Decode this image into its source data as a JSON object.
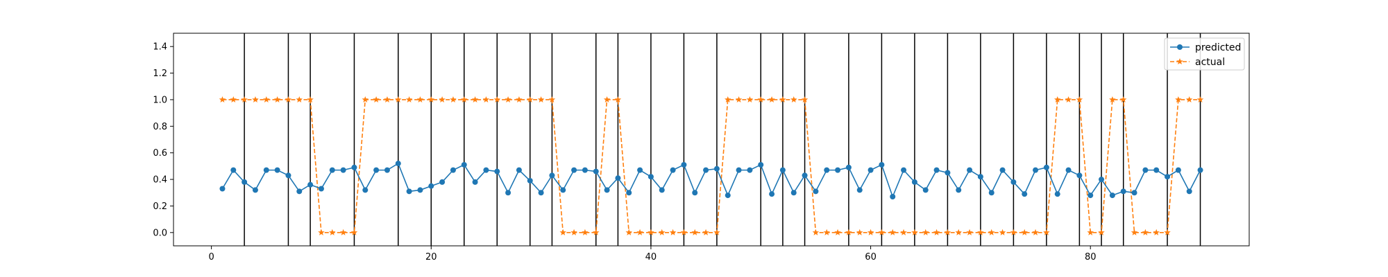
{
  "chart_data": {
    "type": "line",
    "title": "",
    "xlabel": "",
    "ylabel": "",
    "xlim": [
      -3.45,
      94.45
    ],
    "ylim": [
      -0.1,
      1.5
    ],
    "x_ticks": [
      0,
      20,
      40,
      60,
      80
    ],
    "y_ticks": [
      0.0,
      0.2,
      0.4,
      0.6,
      0.8,
      1.0,
      1.2,
      1.4
    ],
    "x_tick_labels": [
      "0",
      "20",
      "40",
      "60",
      "80"
    ],
    "y_tick_labels": [
      "0.0",
      "0.2",
      "0.4",
      "0.6",
      "0.8",
      "1.0",
      "1.2",
      "1.4"
    ],
    "grid": false,
    "legend_position": "top-right",
    "vertical_lines_x": [
      3,
      7,
      9,
      13,
      17,
      20,
      23,
      26,
      29,
      31,
      35,
      37,
      40,
      43,
      46,
      50,
      52,
      54,
      58,
      61,
      64,
      67,
      70,
      73,
      76,
      79,
      81,
      83,
      87,
      90
    ],
    "vertical_line_color": "#000000",
    "x": [
      1,
      2,
      3,
      4,
      5,
      6,
      7,
      8,
      9,
      10,
      11,
      12,
      13,
      14,
      15,
      16,
      17,
      18,
      19,
      20,
      21,
      22,
      23,
      24,
      25,
      26,
      27,
      28,
      29,
      30,
      31,
      32,
      33,
      34,
      35,
      36,
      37,
      38,
      39,
      40,
      41,
      42,
      43,
      44,
      45,
      46,
      47,
      48,
      49,
      50,
      51,
      52,
      53,
      54,
      55,
      56,
      57,
      58,
      59,
      60,
      61,
      62,
      63,
      64,
      65,
      66,
      67,
      68,
      69,
      70,
      71,
      72,
      73,
      74,
      75,
      76,
      77,
      78,
      79,
      80,
      81,
      82,
      83,
      84,
      85,
      86,
      87,
      88,
      89,
      90
    ],
    "series": [
      {
        "name": "predicted",
        "color": "#1f77b4",
        "marker": "circle",
        "line_style": "solid",
        "values": [
          0.33,
          0.47,
          0.38,
          0.32,
          0.47,
          0.47,
          0.43,
          0.31,
          0.36,
          0.33,
          0.47,
          0.47,
          0.49,
          0.32,
          0.47,
          0.47,
          0.52,
          0.31,
          0.32,
          0.35,
          0.38,
          0.47,
          0.51,
          0.38,
          0.47,
          0.46,
          0.3,
          0.47,
          0.39,
          0.3,
          0.43,
          0.32,
          0.47,
          0.47,
          0.46,
          0.32,
          0.41,
          0.3,
          0.47,
          0.42,
          0.32,
          0.47,
          0.51,
          0.3,
          0.47,
          0.48,
          0.28,
          0.47,
          0.47,
          0.51,
          0.29,
          0.47,
          0.3,
          0.43,
          0.31,
          0.47,
          0.47,
          0.49,
          0.32,
          0.47,
          0.51,
          0.27,
          0.47,
          0.38,
          0.32,
          0.47,
          0.45,
          0.32,
          0.47,
          0.42,
          0.3,
          0.47,
          0.38,
          0.29,
          0.47,
          0.49,
          0.29,
          0.47,
          0.43,
          0.28,
          0.4,
          0.28,
          0.31,
          0.3,
          0.47,
          0.47,
          0.42,
          0.47,
          0.31,
          0.47
        ]
      },
      {
        "name": "actual",
        "color": "#ff7f0e",
        "marker": "star",
        "line_style": "dashed",
        "values": [
          1,
          1,
          1,
          1,
          1,
          1,
          1,
          1,
          1,
          0,
          0,
          0,
          0,
          1,
          1,
          1,
          1,
          1,
          1,
          1,
          1,
          1,
          1,
          1,
          1,
          1,
          1,
          1,
          1,
          1,
          1,
          0,
          0,
          0,
          0,
          1,
          1,
          0,
          0,
          0,
          0,
          0,
          0,
          0,
          0,
          0,
          1,
          1,
          1,
          1,
          1,
          1,
          1,
          1,
          0,
          0,
          0,
          0,
          0,
          0,
          0,
          0,
          0,
          0,
          0,
          0,
          0,
          0,
          0,
          0,
          0,
          0,
          0,
          0,
          0,
          0,
          1,
          1,
          1,
          0,
          0,
          1,
          1,
          0,
          0,
          0,
          0,
          1,
          1,
          1
        ]
      }
    ]
  }
}
